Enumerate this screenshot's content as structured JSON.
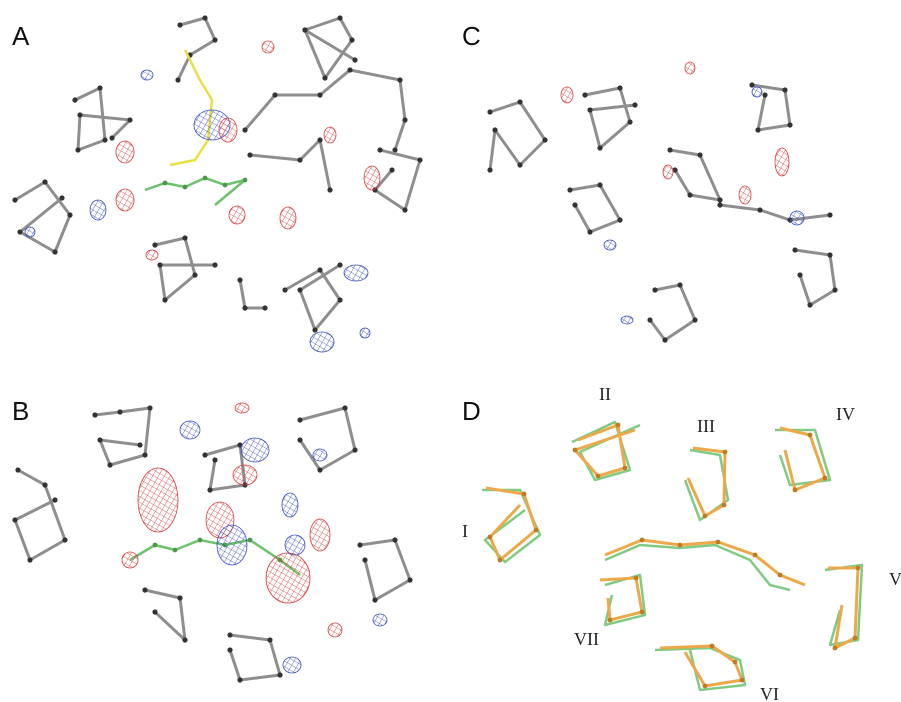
{
  "panels": {
    "a": "A",
    "b": "B",
    "c": "C",
    "d": "D"
  },
  "regions": {
    "i": "I",
    "ii": "II",
    "iii": "III",
    "iv": "IV",
    "v": "V",
    "vi": "VI",
    "vii": "VII"
  }
}
